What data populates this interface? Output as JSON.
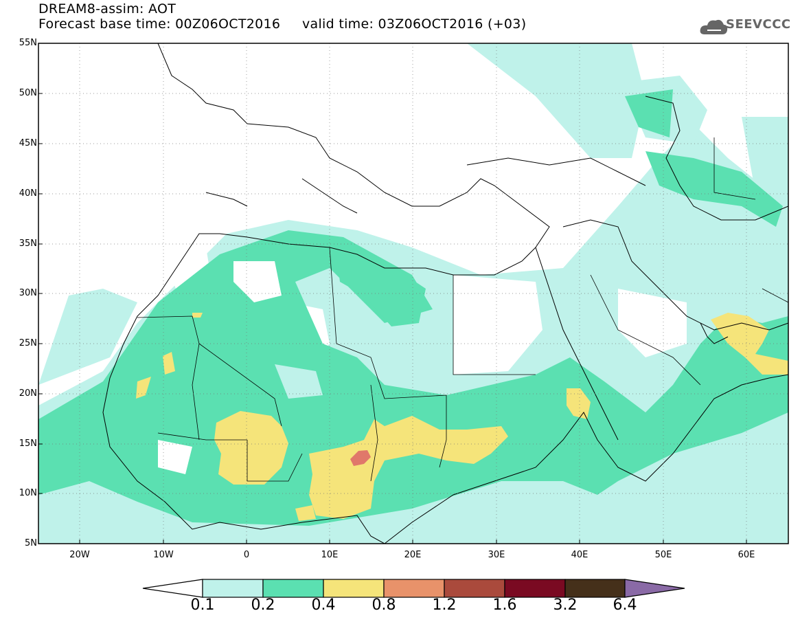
{
  "title": {
    "line1": "DREAM8-assim: AOT",
    "line2": "Forecast base time: 00Z06OCT2016     valid time: 03Z06OCT2016 (+03)"
  },
  "logo": {
    "text": "SEEVCCC",
    "icon": "cloud-logo-icon"
  },
  "map": {
    "projection": "lat-lon",
    "lon_range": [
      -25,
      65
    ],
    "lat_range": [
      5,
      55
    ],
    "y_ticks": [
      "55N",
      "50N",
      "45N",
      "40N",
      "35N",
      "30N",
      "25N",
      "20N",
      "15N",
      "10N",
      "5N"
    ],
    "x_ticks": [
      "20W",
      "10W",
      "0",
      "10E",
      "20E",
      "30E",
      "40E",
      "50E",
      "60E"
    ],
    "gridlines": "dotted",
    "field": "Aerosol optical thickness (dust)"
  },
  "colorbar": {
    "thresholds": [
      "0.1",
      "0.2",
      "0.4",
      "0.8",
      "1.2",
      "1.6",
      "3.2",
      "6.4"
    ],
    "colors": [
      "#ffffff",
      "#bff2ea",
      "#5be0b1",
      "#f5e47a",
      "#e8926a",
      "#aa4a3c",
      "#7a0a22",
      "#45301a",
      "#8a6aa6"
    ]
  }
}
